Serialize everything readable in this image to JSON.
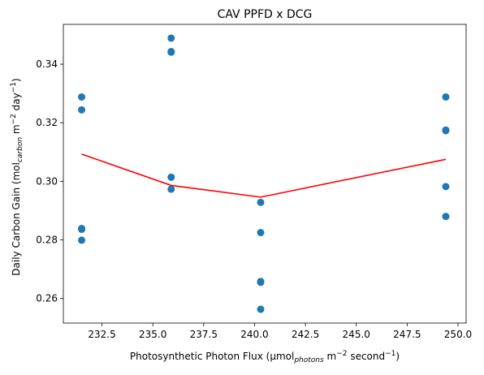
{
  "chart_data": {
    "type": "scatter",
    "title": "CAV PPFD x DCG",
    "xlabel": {
      "main": "Photosynthetic Photon Flux (µmol",
      "sub": "photons",
      "rest": " m",
      "exp1": "−2",
      "rest2": " second",
      "exp2": "−1",
      "close": ")"
    },
    "ylabel": {
      "main": "Daily Carbon Gain (mol",
      "sub": "carbon",
      "rest": " m",
      "exp1": "−2",
      "rest2": " day",
      "exp2": "−1",
      "close": ")"
    },
    "xlim": [
      230.6,
      250.4
    ],
    "ylim": [
      0.2516,
      0.3536
    ],
    "xticks": [
      232.5,
      235.0,
      237.5,
      240.0,
      242.5,
      245.0,
      247.5,
      250.0
    ],
    "xtick_labels": [
      "232.5",
      "235.0",
      "237.5",
      "240.0",
      "242.5",
      "245.0",
      "247.5",
      "250.0"
    ],
    "yticks": [
      0.26,
      0.28,
      0.3,
      0.32,
      0.34
    ],
    "ytick_labels": [
      "0.26",
      "0.28",
      "0.30",
      "0.32",
      "0.34"
    ],
    "grid": false,
    "series": [
      {
        "kind": "scatter",
        "color": "#1f77b4",
        "points": [
          [
            231.5,
            0.3288
          ],
          [
            231.5,
            0.3244
          ],
          [
            231.5,
            0.2839
          ],
          [
            231.5,
            0.2836
          ],
          [
            231.5,
            0.2799
          ],
          [
            235.9,
            0.3489
          ],
          [
            235.9,
            0.3443
          ],
          [
            235.9,
            0.3441
          ],
          [
            235.9,
            0.3014
          ],
          [
            235.9,
            0.2973
          ],
          [
            240.3,
            0.2928
          ],
          [
            240.3,
            0.2825
          ],
          [
            240.3,
            0.2658
          ],
          [
            240.3,
            0.2655
          ],
          [
            240.3,
            0.2563
          ],
          [
            249.4,
            0.3288
          ],
          [
            249.4,
            0.3175
          ],
          [
            249.4,
            0.3173
          ],
          [
            249.4,
            0.2982
          ],
          [
            249.4,
            0.288
          ]
        ]
      },
      {
        "kind": "line",
        "color": "#ff0000",
        "points": [
          [
            231.5,
            0.3093
          ],
          [
            235.9,
            0.2986
          ],
          [
            240.3,
            0.2946
          ],
          [
            249.4,
            0.3075
          ]
        ]
      }
    ]
  }
}
